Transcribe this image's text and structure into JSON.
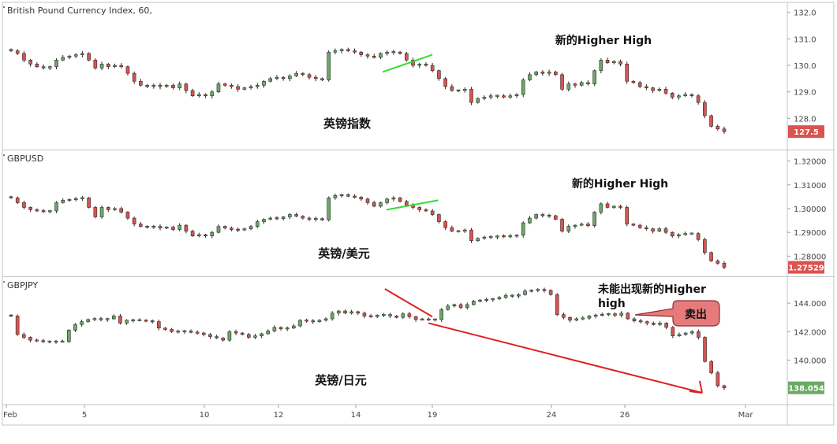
{
  "chart_data": {
    "type": "candlestick",
    "x_axis": {
      "ticks": [
        {
          "label": "Feb",
          "pos": 0
        },
        {
          "label": "5",
          "pos": 1
        },
        {
          "label": "10",
          "pos": 2
        },
        {
          "label": "12",
          "pos": 3
        },
        {
          "label": "14",
          "pos": 4
        },
        {
          "label": "19",
          "pos": 5
        },
        {
          "label": "24",
          "pos": 6
        },
        {
          "label": "26",
          "pos": 7
        },
        {
          "label": "Mar",
          "pos": 8
        }
      ]
    },
    "panels": [
      {
        "title": "British Pound Currency Index, 60,",
        "label": "英镑指数",
        "annotation": "新的Higher High",
        "last_value": "127.5",
        "last_color": "#d9534f",
        "y_ticks": [
          "132.0",
          "131.0",
          "130.0",
          "129.0",
          "128.0"
        ],
        "y_tick_values": [
          132.0,
          131.0,
          130.0,
          129.0,
          128.0
        ],
        "ylim": [
          127.0,
          132.2
        ],
        "trend_line": {
          "color": "#33dd33",
          "x": [
            4.35,
            5.0
          ],
          "y": [
            129.75,
            130.4
          ]
        },
        "closes": [
          130.55,
          130.45,
          130.2,
          130.05,
          129.95,
          129.9,
          129.95,
          130.2,
          130.3,
          130.35,
          130.4,
          130.45,
          130.2,
          129.9,
          130.05,
          129.95,
          130.0,
          129.95,
          129.7,
          129.4,
          129.25,
          129.2,
          129.25,
          129.2,
          129.25,
          129.15,
          129.3,
          129.05,
          128.85,
          128.9,
          128.85,
          129.0,
          129.3,
          129.25,
          129.2,
          129.1,
          129.15,
          129.2,
          129.25,
          129.4,
          129.5,
          129.55,
          129.5,
          129.6,
          129.7,
          129.65,
          129.55,
          129.5,
          129.45,
          130.5,
          130.55,
          130.6,
          130.55,
          130.5,
          130.4,
          130.35,
          130.3,
          130.45,
          130.5,
          130.5,
          130.45,
          130.2,
          130.0,
          130.05,
          130.0,
          129.8,
          129.5,
          129.2,
          129.05,
          129.05,
          129.1,
          128.6,
          128.75,
          128.8,
          128.85,
          128.85,
          128.8,
          128.85,
          128.9,
          129.45,
          129.65,
          129.75,
          129.7,
          129.75,
          129.65,
          129.1,
          129.3,
          129.25,
          129.35,
          129.3,
          129.8,
          130.2,
          130.1,
          130.15,
          130.05,
          129.4,
          129.35,
          129.2,
          129.15,
          129.05,
          129.1,
          128.95,
          128.8,
          128.85,
          128.9,
          128.85,
          128.6,
          128.1,
          127.7,
          127.6,
          127.5
        ]
      },
      {
        "title": "GBPUSD",
        "label": "英镑/美元",
        "annotation": "新的Higher High",
        "last_value": "1.27529",
        "last_color": "#d9534f",
        "y_ticks": [
          "1.32000",
          "1.31000",
          "1.30000",
          "1.29000",
          "1.28000"
        ],
        "y_tick_values": [
          1.32,
          1.31,
          1.3,
          1.29,
          1.28
        ],
        "ylim": [
          1.2735,
          1.3225
        ],
        "trend_line": {
          "color": "#33dd33",
          "x": [
            4.4,
            5.05
          ],
          "y": [
            1.2995,
            1.3035
          ]
        },
        "closes": [
          1.3045,
          1.3025,
          1.3005,
          1.2995,
          1.299,
          1.2988,
          1.299,
          1.3025,
          1.3035,
          1.3038,
          1.3042,
          1.3045,
          1.3005,
          1.2965,
          1.3005,
          1.2995,
          1.3,
          1.2985,
          1.296,
          1.2935,
          1.2925,
          1.2922,
          1.2925,
          1.2918,
          1.2922,
          1.2912,
          1.293,
          1.2905,
          1.2885,
          1.289,
          1.2885,
          1.29,
          1.2925,
          1.2918,
          1.2912,
          1.291,
          1.2915,
          1.2925,
          1.2945,
          1.2955,
          1.296,
          1.2958,
          1.2965,
          1.2975,
          1.2968,
          1.296,
          1.2955,
          1.2958,
          1.2952,
          1.3045,
          1.3055,
          1.3058,
          1.3052,
          1.3048,
          1.304,
          1.3025,
          1.301,
          1.3025,
          1.304,
          1.3045,
          1.303,
          1.3015,
          1.3005,
          1.2995,
          1.299,
          1.2975,
          1.2945,
          1.292,
          1.2905,
          1.2905,
          1.291,
          1.2865,
          1.2875,
          1.288,
          1.288,
          1.2885,
          1.2882,
          1.2885,
          1.2888,
          1.294,
          1.296,
          1.2975,
          1.297,
          1.297,
          1.2955,
          1.2905,
          1.2925,
          1.293,
          1.2935,
          1.2928,
          1.2985,
          1.302,
          1.3005,
          1.301,
          1.3005,
          1.2935,
          1.293,
          1.292,
          1.2915,
          1.2905,
          1.2915,
          1.29,
          1.2885,
          1.289,
          1.2895,
          1.2895,
          1.287,
          1.2815,
          1.278,
          1.277,
          1.2753
        ]
      },
      {
        "title": "GBPJPY",
        "label": "英镑/日元",
        "annotation": "未能出现新的Higher high",
        "callout": "卖出",
        "last_value": "138.054",
        "last_color": "#6aaa64",
        "y_ticks": [
          "144.000",
          "142.000",
          "140.000"
        ],
        "y_tick_values": [
          144.0,
          142.0,
          140.0
        ],
        "ylim": [
          137.2,
          145.5
        ],
        "trend_line": {
          "color": "#e02020",
          "x": [
            4.38,
            5.0
          ],
          "y": [
            145.0,
            143.05
          ]
        },
        "closes": [
          143.1,
          141.8,
          141.6,
          141.4,
          141.35,
          141.3,
          141.3,
          141.3,
          141.3,
          142.1,
          142.5,
          142.7,
          142.85,
          142.9,
          142.85,
          142.9,
          143.1,
          142.6,
          142.8,
          142.8,
          142.8,
          142.75,
          142.7,
          142.25,
          142.15,
          142.0,
          142.0,
          142.05,
          141.95,
          141.9,
          141.8,
          141.65,
          141.55,
          141.4,
          142.0,
          141.9,
          141.8,
          141.6,
          141.7,
          141.85,
          142.05,
          142.3,
          142.2,
          142.25,
          142.4,
          142.8,
          142.75,
          142.7,
          142.8,
          142.9,
          143.3,
          143.45,
          143.3,
          143.4,
          143.3,
          143.1,
          143.05,
          143.15,
          143.2,
          143.1,
          143.0,
          143.25,
          143.05,
          142.85,
          142.85,
          142.85,
          142.85,
          143.55,
          143.8,
          143.9,
          143.7,
          143.9,
          144.15,
          144.2,
          144.25,
          144.3,
          144.4,
          144.55,
          144.5,
          144.6,
          144.85,
          144.9,
          144.95,
          144.9,
          144.6,
          143.2,
          143.0,
          142.8,
          142.9,
          142.95,
          143.1,
          143.15,
          143.2,
          143.25,
          143.15,
          143.3,
          142.9,
          142.75,
          142.7,
          142.6,
          142.5,
          142.6,
          142.3,
          141.7,
          141.8,
          141.9,
          142.0,
          141.6,
          139.9,
          139.1,
          138.2,
          138.05
        ]
      }
    ]
  }
}
